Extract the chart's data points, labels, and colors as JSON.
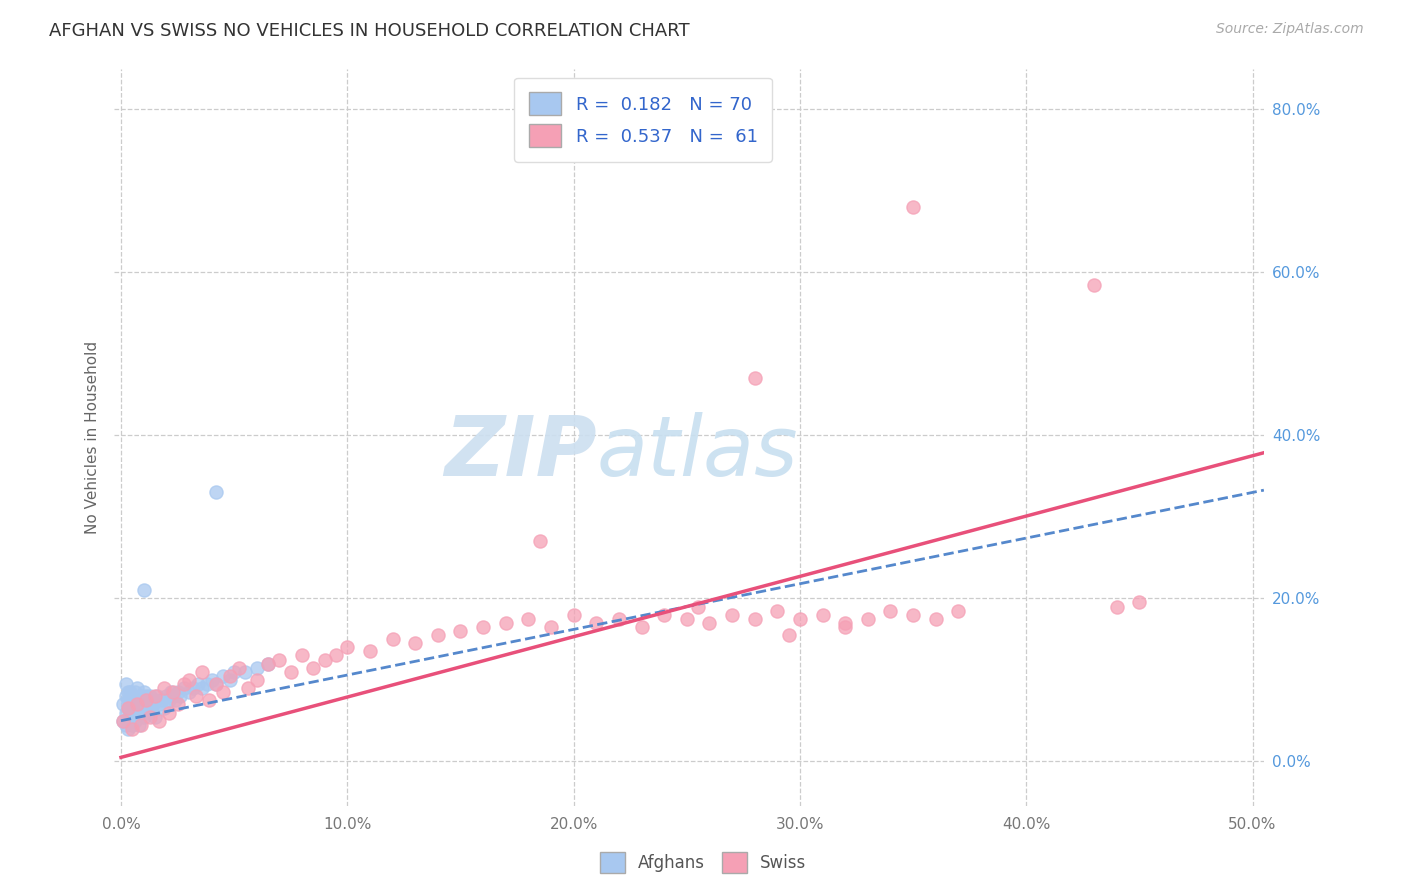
{
  "title": "AFGHAN VS SWISS NO VEHICLES IN HOUSEHOLD CORRELATION CHART",
  "source": "Source: ZipAtlas.com",
  "ylabel": "No Vehicles in Household",
  "xlim": [
    -0.003,
    0.505
  ],
  "ylim": [
    -0.055,
    0.85
  ],
  "xticks": [
    0.0,
    0.1,
    0.2,
    0.3,
    0.4,
    0.5
  ],
  "xticklabels": [
    "0.0%",
    "10.0%",
    "20.0%",
    "30.0%",
    "40.0%",
    "50.0%"
  ],
  "yticks": [
    0.0,
    0.2,
    0.4,
    0.6,
    0.8
  ],
  "yticklabels": [
    "0.0%",
    "20.0%",
    "40.0%",
    "60.0%",
    "80.0%"
  ],
  "afghans_R": 0.182,
  "afghans_N": 70,
  "swiss_R": 0.537,
  "swiss_N": 61,
  "afghans_color": "#a8c8f0",
  "swiss_color": "#f5a0b5",
  "trendline_afghan_color": "#5588cc",
  "trendline_swiss_color": "#e8507a",
  "watermark_zip": "ZIP",
  "watermark_atlas": "atlas",
  "watermark_color_zip": "#c8dff0",
  "watermark_color_atlas": "#c8dff0",
  "afghans_x": [
    0.001,
    0.001,
    0.002,
    0.002,
    0.002,
    0.002,
    0.003,
    0.003,
    0.003,
    0.003,
    0.003,
    0.004,
    0.004,
    0.004,
    0.004,
    0.005,
    0.005,
    0.005,
    0.005,
    0.006,
    0.006,
    0.006,
    0.006,
    0.007,
    0.007,
    0.007,
    0.008,
    0.008,
    0.008,
    0.009,
    0.009,
    0.01,
    0.01,
    0.01,
    0.011,
    0.011,
    0.012,
    0.012,
    0.013,
    0.013,
    0.014,
    0.015,
    0.015,
    0.016,
    0.017,
    0.018,
    0.019,
    0.02,
    0.021,
    0.022,
    0.023,
    0.024,
    0.025,
    0.026,
    0.028,
    0.03,
    0.032,
    0.034,
    0.036,
    0.038,
    0.04,
    0.042,
    0.045,
    0.048,
    0.05,
    0.055,
    0.06,
    0.065,
    0.01,
    0.042
  ],
  "afghans_y": [
    0.07,
    0.05,
    0.06,
    0.08,
    0.095,
    0.045,
    0.065,
    0.075,
    0.085,
    0.05,
    0.04,
    0.06,
    0.07,
    0.085,
    0.05,
    0.055,
    0.065,
    0.08,
    0.045,
    0.06,
    0.07,
    0.085,
    0.05,
    0.065,
    0.075,
    0.09,
    0.06,
    0.075,
    0.045,
    0.065,
    0.08,
    0.055,
    0.07,
    0.085,
    0.065,
    0.08,
    0.06,
    0.075,
    0.065,
    0.08,
    0.07,
    0.075,
    0.055,
    0.08,
    0.07,
    0.075,
    0.065,
    0.08,
    0.075,
    0.085,
    0.08,
    0.075,
    0.085,
    0.08,
    0.09,
    0.085,
    0.09,
    0.095,
    0.09,
    0.095,
    0.1,
    0.095,
    0.105,
    0.1,
    0.11,
    0.11,
    0.115,
    0.12,
    0.21,
    0.33
  ],
  "swiss_x": [
    0.001,
    0.003,
    0.005,
    0.007,
    0.009,
    0.011,
    0.013,
    0.015,
    0.017,
    0.019,
    0.021,
    0.023,
    0.025,
    0.028,
    0.03,
    0.033,
    0.036,
    0.039,
    0.042,
    0.045,
    0.048,
    0.052,
    0.056,
    0.06,
    0.065,
    0.07,
    0.075,
    0.08,
    0.085,
    0.09,
    0.095,
    0.1,
    0.11,
    0.12,
    0.13,
    0.14,
    0.15,
    0.16,
    0.17,
    0.18,
    0.19,
    0.2,
    0.21,
    0.22,
    0.23,
    0.24,
    0.25,
    0.26,
    0.27,
    0.28,
    0.29,
    0.3,
    0.31,
    0.32,
    0.33,
    0.34,
    0.35,
    0.36,
    0.37,
    0.44,
    0.45
  ],
  "swiss_y": [
    0.05,
    0.065,
    0.04,
    0.07,
    0.045,
    0.075,
    0.055,
    0.08,
    0.05,
    0.09,
    0.06,
    0.085,
    0.07,
    0.095,
    0.1,
    0.08,
    0.11,
    0.075,
    0.095,
    0.085,
    0.105,
    0.115,
    0.09,
    0.1,
    0.12,
    0.125,
    0.11,
    0.13,
    0.115,
    0.125,
    0.13,
    0.14,
    0.135,
    0.15,
    0.145,
    0.155,
    0.16,
    0.165,
    0.17,
    0.175,
    0.165,
    0.18,
    0.17,
    0.175,
    0.165,
    0.18,
    0.175,
    0.17,
    0.18,
    0.175,
    0.185,
    0.175,
    0.18,
    0.17,
    0.175,
    0.185,
    0.18,
    0.175,
    0.185,
    0.19,
    0.195
  ]
}
